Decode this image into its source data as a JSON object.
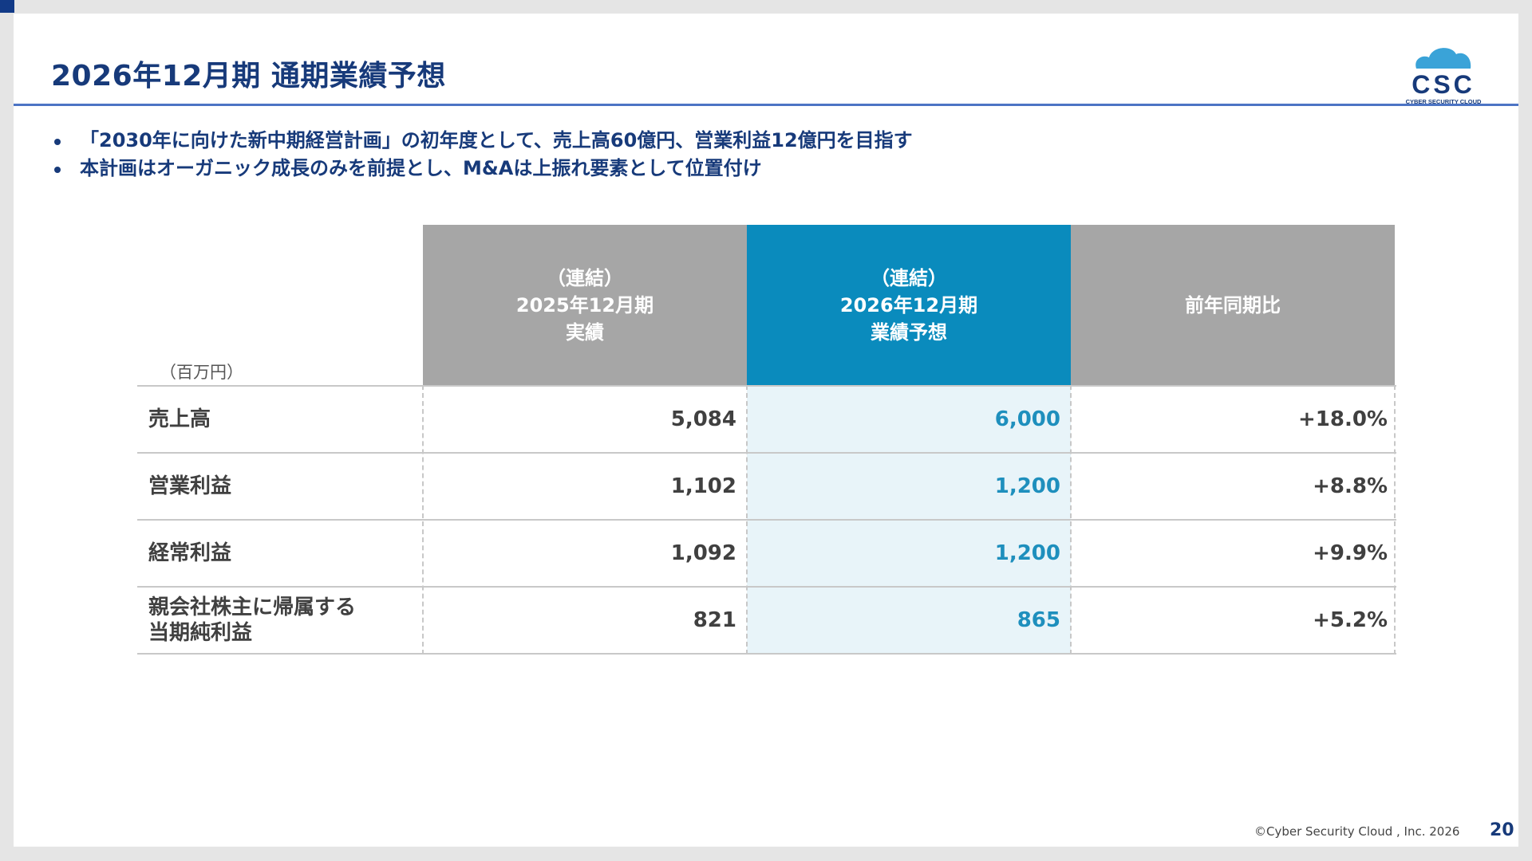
{
  "header": {
    "title": "2026年12月期 通期業績予想"
  },
  "logo": {
    "text": "CSC",
    "subtext": "CYBER SECURITY CLOUD",
    "icon": "cloud-icon",
    "color": "#173a7a",
    "accent_color": "#3aa3d8"
  },
  "bullets": [
    "「2030年に向けた新中期経営計画」の初年度として、売上高60億円、営業利益12億円を目指す",
    "本計画はオーガニック成長のみを前提とし、M&Aは上振れ要素として位置付け"
  ],
  "table": {
    "unit": "（百万円）",
    "columns": [
      {
        "line1": "（連結）",
        "line2": "2025年12月期",
        "line3": "実績"
      },
      {
        "line1": "（連結）",
        "line2": "2026年12月期",
        "line3": "業績予想"
      },
      {
        "line1": "前年同期比",
        "line2": "",
        "line3": ""
      }
    ],
    "rows": [
      {
        "label": "売上高",
        "actual": "5,084",
        "forecast": "6,000",
        "yoy": "+18.0%"
      },
      {
        "label": "営業利益",
        "actual": "1,102",
        "forecast": "1,200",
        "yoy": "+8.8%"
      },
      {
        "label": "経常利益",
        "actual": "1,092",
        "forecast": "1,200",
        "yoy": "+9.9%"
      },
      {
        "label": "親会社株主に帰属する\n当期純利益",
        "actual": "821",
        "forecast": "865",
        "yoy": "+5.2%"
      }
    ]
  },
  "colors": {
    "navy": "#173a7a",
    "header_gray": "#a6a6a6",
    "header_blue": "#0a8bbd",
    "highlight_text": "#1e8fbd",
    "highlight_bg": "#e8f4f9"
  },
  "footer": {
    "copyright": "©Cyber Security Cloud , Inc. 2026",
    "page_number": "20"
  }
}
